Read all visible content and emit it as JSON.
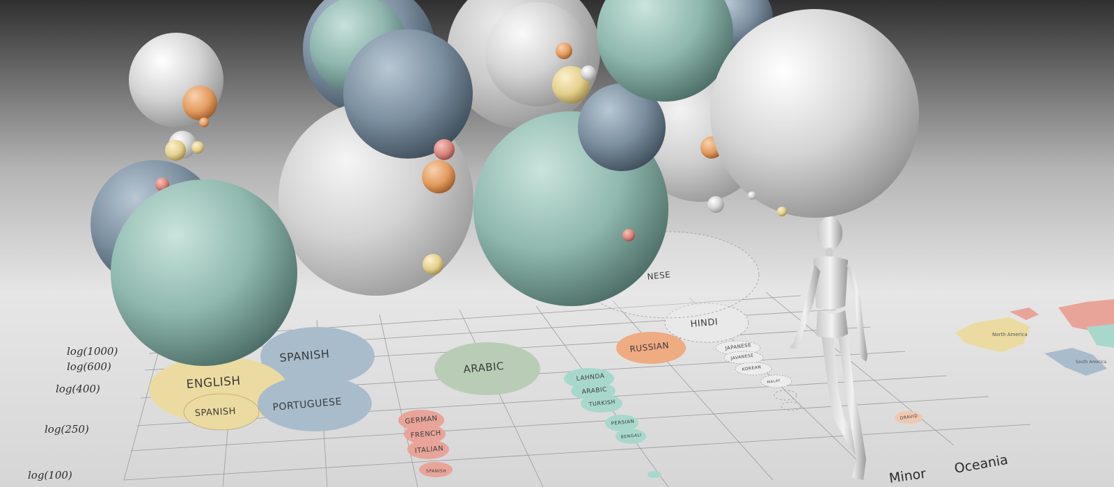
{
  "axis_labels": [
    "log(1000)",
    "log(600)",
    "log(400)",
    "log(250)",
    "log(100)"
  ],
  "regions": [
    "Minor",
    "Oceania"
  ],
  "floor_bubbles": [
    {
      "label": "SPANISH",
      "color": "#a9bccb"
    },
    {
      "label": "ENGLISH",
      "color": "#ecdba0"
    },
    {
      "label": "SPANISH",
      "color": "#ecdba0"
    },
    {
      "label": "PORTUGUESE",
      "color": "#a9bccb"
    },
    {
      "label": "ARABIC",
      "color": "#b9cdb6"
    },
    {
      "label": "RUSSIAN",
      "color": "#efab82"
    },
    {
      "label": "HINDI",
      "color": "#e9e9e9"
    },
    {
      "label": "NESE",
      "color": "#e9e9e9"
    },
    {
      "label": "GERMAN",
      "color": "#e9a49a"
    },
    {
      "label": "FRENCH",
      "color": "#e9a49a"
    },
    {
      "label": "ITALIAN",
      "color": "#e9a49a"
    },
    {
      "label": "SPANISH",
      "color": "#e9a49a"
    },
    {
      "label": "LAHNDA",
      "color": "#a8d8cc"
    },
    {
      "label": "ARABIC",
      "color": "#a8d8cc"
    },
    {
      "label": "TURKISH",
      "color": "#a8d8cc"
    },
    {
      "label": "PERSIAN",
      "color": "#a8d8cc"
    },
    {
      "label": "BENGALI",
      "color": "#a8d8cc"
    },
    {
      "label": "JAPANESE",
      "color": "#ececec"
    },
    {
      "label": "JAVANESE",
      "color": "#ececec"
    },
    {
      "label": "KOREAN",
      "color": "#ececec"
    },
    {
      "label": "MALAY",
      "color": "#ececec"
    },
    {
      "label": "DRAVID",
      "color": "#efc8b0"
    }
  ],
  "map_labels": [
    "North America",
    "South America"
  ],
  "colors": {
    "teal": "#8fb8ae",
    "slate": "#7b8fa0",
    "silver": "#d8d8d8",
    "orange": "#e39b5e",
    "gold": "#e3cf8c",
    "red": "#d9857b"
  }
}
